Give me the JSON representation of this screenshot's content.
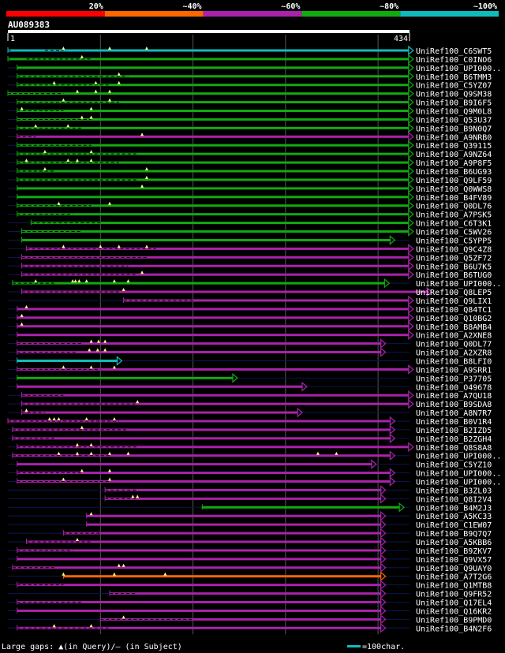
{
  "legend": {
    "colors": [
      "#ff0000",
      "#ff6600",
      "#aa22aa",
      "#11aa11",
      "#11bbbb"
    ],
    "ticks": [
      "20%",
      "~40%",
      "~60%",
      "~80%",
      "~100%"
    ]
  },
  "query": {
    "id": "AU089383",
    "start": "1",
    "end": "434",
    "length": 434
  },
  "hits": [
    {
      "name": "UniRef100_C6SWT5",
      "color": "#11bbbb",
      "start": 0,
      "end": 433,
      "gaps": [
        [
          0,
          3
        ],
        [
          40,
          60
        ]
      ],
      "marks": [
        60,
        110,
        150
      ]
    },
    {
      "name": "UniRef100_C0INO6",
      "color": "#11aa11",
      "start": 0,
      "end": 433,
      "gaps": [
        [
          0,
          2
        ],
        [
          20,
          90
        ]
      ],
      "marks": [
        80
      ]
    },
    {
      "name": "UniRef100_UPI000..",
      "color": "#11aa11",
      "start": 10,
      "end": 433,
      "gaps": [],
      "marks": []
    },
    {
      "name": "UniRef100_B6TMM3",
      "color": "#11aa11",
      "start": 10,
      "end": 433,
      "gaps": [
        [
          10,
          130
        ]
      ],
      "marks": [
        120
      ]
    },
    {
      "name": "UniRef100_C5YZ07",
      "color": "#11aa11",
      "start": 10,
      "end": 433,
      "gaps": [
        [
          10,
          110
        ]
      ],
      "marks": [
        50,
        95,
        120
      ]
    },
    {
      "name": "UniRef100_Q9SM38",
      "color": "#11aa11",
      "start": 0,
      "end": 433,
      "gaps": [
        [
          0,
          60
        ]
      ],
      "marks": [
        75,
        95,
        110
      ]
    },
    {
      "name": "UniRef100_B9I6F5",
      "color": "#11aa11",
      "start": 10,
      "end": 433,
      "gaps": [
        [
          10,
          120
        ]
      ],
      "marks": [
        60,
        110
      ]
    },
    {
      "name": "UniRef100_Q9M0L8",
      "color": "#11aa11",
      "start": 10,
      "end": 433,
      "gaps": [
        [
          10,
          60
        ]
      ],
      "marks": [
        15,
        90
      ]
    },
    {
      "name": "UniRef100_Q53U37",
      "color": "#11aa11",
      "start": 10,
      "end": 433,
      "gaps": [
        [
          10,
          90
        ]
      ],
      "marks": [
        80,
        90
      ]
    },
    {
      "name": "UniRef100_B9N0Q7",
      "color": "#11aa11",
      "start": 10,
      "end": 433,
      "gaps": [
        [
          10,
          80
        ]
      ],
      "marks": [
        30,
        65
      ]
    },
    {
      "name": "UniRef100_A9NRB0",
      "color": "#aa22aa",
      "start": 10,
      "end": 433,
      "gaps": [
        [
          10,
          30
        ]
      ],
      "marks": [
        145
      ]
    },
    {
      "name": "UniRef100_Q39115",
      "color": "#11aa11",
      "start": 10,
      "end": 433,
      "gaps": [
        [
          10,
          90
        ]
      ],
      "marks": []
    },
    {
      "name": "UniRef100_A9NZ64",
      "color": "#11aa11",
      "start": 10,
      "end": 433,
      "gaps": [
        [
          10,
          140
        ]
      ],
      "marks": [
        40,
        90
      ]
    },
    {
      "name": "UniRef100_A9P8F5",
      "color": "#11aa11",
      "start": 10,
      "end": 433,
      "gaps": [
        [
          10,
          120
        ]
      ],
      "marks": [
        20,
        65,
        75,
        90
      ]
    },
    {
      "name": "UniRef100_B6UG93",
      "color": "#11aa11",
      "start": 10,
      "end": 433,
      "gaps": [
        [
          10,
          50
        ]
      ],
      "marks": [
        40,
        150
      ]
    },
    {
      "name": "UniRef100_Q9LF59",
      "color": "#11aa11",
      "start": 10,
      "end": 433,
      "gaps": [
        [
          10,
          140
        ]
      ],
      "marks": [
        150
      ]
    },
    {
      "name": "UniRef100_Q0WWS8",
      "color": "#11aa11",
      "start": 10,
      "end": 433,
      "gaps": [],
      "marks": [
        145
      ]
    },
    {
      "name": "UniRef100_B4FV89",
      "color": "#11aa11",
      "start": 10,
      "end": 433,
      "gaps": [],
      "marks": []
    },
    {
      "name": "UniRef100_Q0DL76",
      "color": "#11aa11",
      "start": 10,
      "end": 433,
      "gaps": [
        [
          10,
          90
        ]
      ],
      "marks": [
        55,
        110
      ]
    },
    {
      "name": "UniRef100_A7PSK5",
      "color": "#11aa11",
      "start": 10,
      "end": 433,
      "gaps": [
        [
          10,
          70
        ]
      ],
      "marks": []
    },
    {
      "name": "UniRef100_C6T3K1",
      "color": "#11aa11",
      "start": 25,
      "end": 433,
      "gaps": [
        [
          25,
          100
        ]
      ],
      "marks": []
    },
    {
      "name": "UniRef100_C5WV26",
      "color": "#11aa11",
      "start": 15,
      "end": 433,
      "gaps": [
        [
          15,
          80
        ]
      ],
      "marks": []
    },
    {
      "name": "UniRef100_C5YPP5",
      "color": "#11aa11",
      "start": 15,
      "end": 413,
      "gaps": [],
      "marks": []
    },
    {
      "name": "UniRef100_Q9C4Z8",
      "color": "#aa22aa",
      "start": 20,
      "end": 433,
      "gaps": [
        [
          20,
          160
        ]
      ],
      "marks": [
        60,
        100,
        120,
        150
      ]
    },
    {
      "name": "UniRef100_Q5ZF72",
      "color": "#aa22aa",
      "start": 15,
      "end": 433,
      "gaps": [
        [
          15,
          150
        ]
      ],
      "marks": []
    },
    {
      "name": "UniRef100_B6U7K5",
      "color": "#aa22aa",
      "start": 15,
      "end": 433,
      "gaps": [
        [
          15,
          130
        ]
      ],
      "marks": []
    },
    {
      "name": "UniRef100_B6TUG0",
      "color": "#aa22aa",
      "start": 15,
      "end": 433,
      "gaps": [
        [
          15,
          140
        ]
      ],
      "marks": [
        145
      ]
    },
    {
      "name": "UniRef100_UPI000..",
      "color": "#11aa11",
      "start": 5,
      "end": 407,
      "gaps": [
        [
          5,
          50
        ]
      ],
      "marks": [
        30,
        70,
        73,
        77,
        85,
        115,
        130
      ]
    },
    {
      "name": "UniRef100_Q8LEP5",
      "color": "#aa22aa",
      "start": 15,
      "end": 453,
      "gaps": [
        [
          15,
          120
        ]
      ],
      "marks": [
        125
      ]
    },
    {
      "name": "UniRef100_Q9LIX1",
      "color": "#aa22aa",
      "start": 125,
      "end": 433,
      "gaps": [
        [
          125,
          200
        ]
      ],
      "marks": []
    },
    {
      "name": "UniRef100_Q84TC1",
      "color": "#aa22aa",
      "start": 10,
      "end": 433,
      "gaps": [],
      "marks": [
        20
      ]
    },
    {
      "name": "UniRef100_Q10BG2",
      "color": "#aa22aa",
      "start": 10,
      "end": 433,
      "gaps": [],
      "marks": [
        15
      ]
    },
    {
      "name": "UniRef100_B8AMB4",
      "color": "#aa22aa",
      "start": 10,
      "end": 433,
      "gaps": [],
      "marks": [
        15
      ]
    },
    {
      "name": "UniRef100_A2XNE8",
      "color": "#aa22aa",
      "start": 10,
      "end": 433,
      "gaps": [],
      "marks": []
    },
    {
      "name": "UniRef100_Q0DL77",
      "color": "#aa22aa",
      "start": 10,
      "end": 403,
      "gaps": [
        [
          10,
          80
        ]
      ],
      "marks": [
        90,
        98,
        105
      ]
    },
    {
      "name": "UniRef100_A2XZR8",
      "color": "#aa22aa",
      "start": 10,
      "end": 403,
      "gaps": [
        [
          10,
          75
        ]
      ],
      "marks": [
        88,
        97,
        105
      ]
    },
    {
      "name": "UniRef100_B8LFI0",
      "color": "#11bbbb",
      "start": 10,
      "end": 118,
      "gaps": [],
      "marks": []
    },
    {
      "name": "UniRef100_A9SRR1",
      "color": "#aa22aa",
      "start": 10,
      "end": 433,
      "gaps": [
        [
          10,
          100
        ]
      ],
      "marks": [
        60,
        90,
        115
      ]
    },
    {
      "name": "UniRef100_P37705",
      "color": "#11aa11",
      "start": 10,
      "end": 243,
      "gaps": [],
      "marks": []
    },
    {
      "name": "UniRef100_O49678",
      "color": "#aa22aa",
      "start": 10,
      "end": 318,
      "gaps": [],
      "marks": []
    },
    {
      "name": "UniRef100_A7QU18",
      "color": "#aa22aa",
      "start": 15,
      "end": 433,
      "gaps": [
        [
          15,
          60
        ]
      ],
      "marks": []
    },
    {
      "name": "UniRef100_B9SDA8",
      "color": "#aa22aa",
      "start": 15,
      "end": 433,
      "gaps": [
        [
          15,
          140
        ]
      ],
      "marks": [
        140
      ]
    },
    {
      "name": "UniRef100_A8N7R7",
      "color": "#aa22aa",
      "start": 15,
      "end": 313,
      "gaps": [
        [
          15,
          40
        ]
      ],
      "marks": [
        20
      ]
    },
    {
      "name": "UniRef100_B0V1R4",
      "color": "#aa22aa",
      "start": 0,
      "end": 413,
      "gaps": [
        [
          0,
          120
        ]
      ],
      "marks": [
        45,
        50,
        55,
        85,
        115
      ]
    },
    {
      "name": "UniRef100_B2IZD5",
      "color": "#aa22aa",
      "start": 5,
      "end": 413,
      "gaps": [
        [
          5,
          130
        ]
      ],
      "marks": [
        80
      ]
    },
    {
      "name": "UniRef100_B2ZGH4",
      "color": "#aa22aa",
      "start": 5,
      "end": 413,
      "gaps": [
        [
          5,
          50
        ]
      ],
      "marks": []
    },
    {
      "name": "UniRef100_Q8S8A8",
      "color": "#aa22aa",
      "start": 10,
      "end": 433,
      "gaps": [
        [
          10,
          140
        ]
      ],
      "marks": [
        75,
        90
      ]
    },
    {
      "name": "UniRef100_UPI000..",
      "color": "#aa22aa",
      "start": 5,
      "end": 413,
      "gaps": [
        [
          5,
          110
        ]
      ],
      "marks": [
        55,
        75,
        90,
        110,
        130,
        335,
        355
      ]
    },
    {
      "name": "UniRef100_C5YZ10",
      "color": "#aa22aa",
      "start": 10,
      "end": 393,
      "gaps": [],
      "marks": []
    },
    {
      "name": "UniRef100_UPI000..",
      "color": "#aa22aa",
      "start": 10,
      "end": 413,
      "gaps": [
        [
          10,
          80
        ]
      ],
      "marks": [
        80,
        110
      ]
    },
    {
      "name": "UniRef100_UPI000..",
      "color": "#aa22aa",
      "start": 10,
      "end": 413,
      "gaps": [
        [
          10,
          110
        ]
      ],
      "marks": [
        60,
        110
      ]
    },
    {
      "name": "UniRef100_B3ZL03",
      "color": "#aa22aa",
      "start": 105,
      "end": 403,
      "gaps": [
        [
          105,
          140
        ]
      ],
      "marks": []
    },
    {
      "name": "UniRef100_Q8I2V4",
      "color": "#aa22aa",
      "start": 105,
      "end": 403,
      "gaps": [
        [
          105,
          140
        ]
      ],
      "marks": [
        135,
        140
      ]
    },
    {
      "name": "UniRef100_B4M2J3",
      "color": "#11aa11",
      "start": 210,
      "end": 423,
      "gaps": [],
      "marks": []
    },
    {
      "name": "UniRef100_A5KC33",
      "color": "#aa22aa",
      "start": 85,
      "end": 403,
      "gaps": [],
      "marks": [
        90
      ]
    },
    {
      "name": "UniRef100_C1EW07",
      "color": "#aa22aa",
      "start": 85,
      "end": 403,
      "gaps": [],
      "marks": []
    },
    {
      "name": "UniRef100_B9Q7Q7",
      "color": "#aa22aa",
      "start": 60,
      "end": 403,
      "gaps": [
        [
          60,
          100
        ]
      ],
      "marks": []
    },
    {
      "name": "UniRef100_A5KBB6",
      "color": "#aa22aa",
      "start": 20,
      "end": 403,
      "gaps": [
        [
          20,
          90
        ]
      ],
      "marks": [
        75
      ]
    },
    {
      "name": "UniRef100_B9ZKV7",
      "color": "#aa22aa",
      "start": 10,
      "end": 403,
      "gaps": [
        [
          10,
          70
        ]
      ],
      "marks": []
    },
    {
      "name": "UniRef100_Q9VX57",
      "color": "#aa22aa",
      "start": 10,
      "end": 403,
      "gaps": [],
      "marks": []
    },
    {
      "name": "UniRef100_Q9UAY0",
      "color": "#aa22aa",
      "start": 5,
      "end": 403,
      "gaps": [
        [
          5,
          50
        ]
      ],
      "marks": [
        120,
        125
      ]
    },
    {
      "name": "UniRef100_A7T2G6",
      "color": "#ff6600",
      "start": 60,
      "end": 403,
      "gaps": [],
      "marks": [
        60,
        115,
        170
      ]
    },
    {
      "name": "UniRef100_Q1MTB8",
      "color": "#aa22aa",
      "start": 10,
      "end": 403,
      "gaps": [
        [
          10,
          60
        ]
      ],
      "marks": []
    },
    {
      "name": "UniRef100_Q9FR52",
      "color": "#aa22aa",
      "start": 110,
      "end": 403,
      "gaps": [
        [
          110,
          140
        ]
      ],
      "marks": []
    },
    {
      "name": "UniRef100_Q17EL4",
      "color": "#aa22aa",
      "start": 10,
      "end": 403,
      "gaps": [
        [
          10,
          80
        ]
      ],
      "marks": []
    },
    {
      "name": "UniRef100_Q16KR2",
      "color": "#aa22aa",
      "start": 10,
      "end": 403,
      "gaps": [],
      "marks": []
    },
    {
      "name": "UniRef100_B9PMD0",
      "color": "#aa22aa",
      "start": 100,
      "end": 403,
      "gaps": [
        [
          100,
          200
        ]
      ],
      "marks": [
        125
      ]
    },
    {
      "name": "UniRef100_B4N2F6",
      "color": "#aa22aa",
      "start": 10,
      "end": 403,
      "gaps": [
        [
          10,
          110
        ]
      ],
      "marks": [
        50,
        90
      ]
    }
  ],
  "footer": {
    "text": "Large gaps: ▲(in Query)/— (in Subject)",
    "scale_text": "=100char.",
    "scale_color": "#11bbbb"
  }
}
